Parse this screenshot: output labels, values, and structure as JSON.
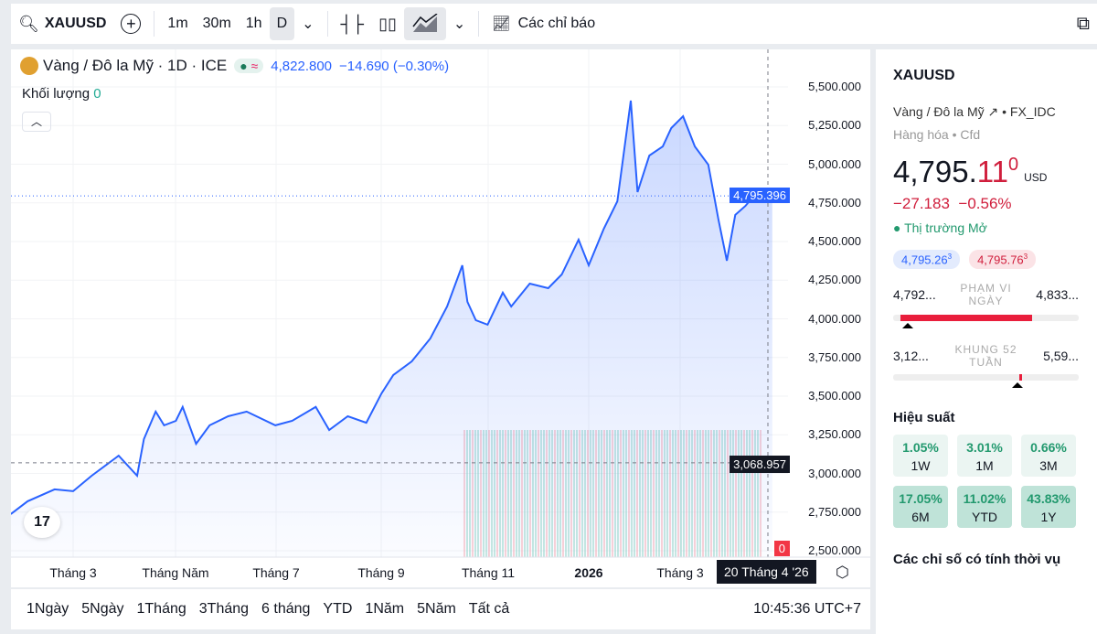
{
  "toolbar": {
    "symbol": "XAUUSD",
    "intervals": [
      "1m",
      "30m",
      "1h",
      "D"
    ],
    "indicators": "Các chỉ báo"
  },
  "legend": {
    "title": "Vàng / Đô la Mỹ · 1D · ICE",
    "price": "4,822.800",
    "change": "−14.690 (−0.30%)",
    "volume_label": "Khối lượng",
    "volume_value": "0"
  },
  "axis": {
    "y_ticks": [
      "5,500.000",
      "5,250.000",
      "5,000.000",
      "4,750.000",
      "4,500.000",
      "4,250.000",
      "4,000.000",
      "3,750.000",
      "3,500.000",
      "3,250.000",
      "3,000.000",
      "2,750.000",
      "2,500.000"
    ],
    "x_ticks": [
      "Tháng 3",
      "Tháng Năm",
      "Tháng 7",
      "Tháng 9",
      "Tháng 11",
      "2026",
      "Tháng 3"
    ],
    "last_price_label": "4,795.396",
    "crosshair_price": "3,068.957",
    "crosshair_date": "20 Tháng 4 '26",
    "volume_badge": "0"
  },
  "chart_data": {
    "type": "area",
    "ylim": [
      2500,
      5500
    ],
    "color": "#2962ff",
    "points": [
      [
        "2025-01-23",
        2737
      ],
      [
        "2025-02-02",
        2820
      ],
      [
        "2025-02-18",
        2897
      ],
      [
        "2025-03-01",
        2885
      ],
      [
        "2025-03-12",
        2985
      ],
      [
        "2025-03-28",
        3115
      ],
      [
        "2025-04-08",
        2985
      ],
      [
        "2025-04-12",
        3222
      ],
      [
        "2025-04-19",
        3400
      ],
      [
        "2025-04-24",
        3311
      ],
      [
        "2025-05-01",
        3340
      ],
      [
        "2025-05-05",
        3430
      ],
      [
        "2025-05-13",
        3192
      ],
      [
        "2025-05-21",
        3311
      ],
      [
        "2025-06-01",
        3370
      ],
      [
        "2025-06-12",
        3400
      ],
      [
        "2025-06-29",
        3311
      ],
      [
        "2025-07-09",
        3340
      ],
      [
        "2025-07-23",
        3430
      ],
      [
        "2025-07-31",
        3281
      ],
      [
        "2025-08-11",
        3370
      ],
      [
        "2025-08-22",
        3328
      ],
      [
        "2025-08-31",
        3517
      ],
      [
        "2025-09-07",
        3636
      ],
      [
        "2025-09-18",
        3725
      ],
      [
        "2025-09-29",
        3873
      ],
      [
        "2025-10-09",
        4080
      ],
      [
        "2025-10-18",
        4346
      ],
      [
        "2025-10-21",
        4110
      ],
      [
        "2025-10-26",
        3991
      ],
      [
        "2025-11-02",
        3962
      ],
      [
        "2025-11-11",
        4169
      ],
      [
        "2025-11-16",
        4080
      ],
      [
        "2025-11-27",
        4228
      ],
      [
        "2025-12-08",
        4198
      ],
      [
        "2025-12-16",
        4287
      ],
      [
        "2025-12-26",
        4512
      ],
      [
        "2026-01-01",
        4346
      ],
      [
        "2026-01-10",
        4583
      ],
      [
        "2026-01-18",
        4760
      ],
      [
        "2026-01-26",
        5411
      ],
      [
        "2026-01-30",
        4820
      ],
      [
        "2026-02-06",
        5056
      ],
      [
        "2026-02-14",
        5115
      ],
      [
        "2026-02-19",
        5234
      ],
      [
        "2026-02-26",
        5310
      ],
      [
        "2026-03-05",
        5115
      ],
      [
        "2026-03-13",
        4997
      ],
      [
        "2026-03-19",
        4642
      ],
      [
        "2026-03-24",
        4376
      ],
      [
        "2026-03-29",
        4672
      ],
      [
        "2026-04-04",
        4730
      ],
      [
        "2026-04-11",
        4820
      ],
      [
        "2026-04-20",
        4795
      ]
    ]
  },
  "ranges": [
    "1Ngày",
    "5Ngày",
    "1Tháng",
    "3Tháng",
    "6 tháng",
    "YTD",
    "1Năm",
    "5Năm",
    "Tất cả"
  ],
  "clock": "10:45:36 UTC+7",
  "side": {
    "symbol": "XAUUSD",
    "name": "Vàng / Đô la Mỹ",
    "exchange": "FX_IDC",
    "category": "Hàng hóa",
    "type": "Cfd",
    "price_main": "4,795.",
    "price_tail": "11",
    "price_sup": "0",
    "currency": "USD",
    "change": "−27.183",
    "change_pct": "−0.56%",
    "market_status": "Thị trường Mở",
    "bid": "4,795.26",
    "bid_sup": "3",
    "ask": "4,795.76",
    "ask_sup": "3",
    "day_low": "4,792...",
    "day_label": "PHẠM VI NGÀY",
    "day_high": "4,833...",
    "day_position": 0.02,
    "wk_low": "3,12...",
    "wk_label": "KHUNG 52 TUẦN",
    "wk_high": "5,59...",
    "wk_position": 0.68,
    "perf_title": "Hiệu suất",
    "perf": [
      {
        "v": "1.05%",
        "l": "1W"
      },
      {
        "v": "3.01%",
        "l": "1M"
      },
      {
        "v": "0.66%",
        "l": "3M"
      },
      {
        "v": "17.05%",
        "l": "6M"
      },
      {
        "v": "11.02%",
        "l": "YTD"
      },
      {
        "v": "43.83%",
        "l": "1Y"
      }
    ],
    "seasonal_title": "Các chỉ số có tính thời vụ"
  }
}
